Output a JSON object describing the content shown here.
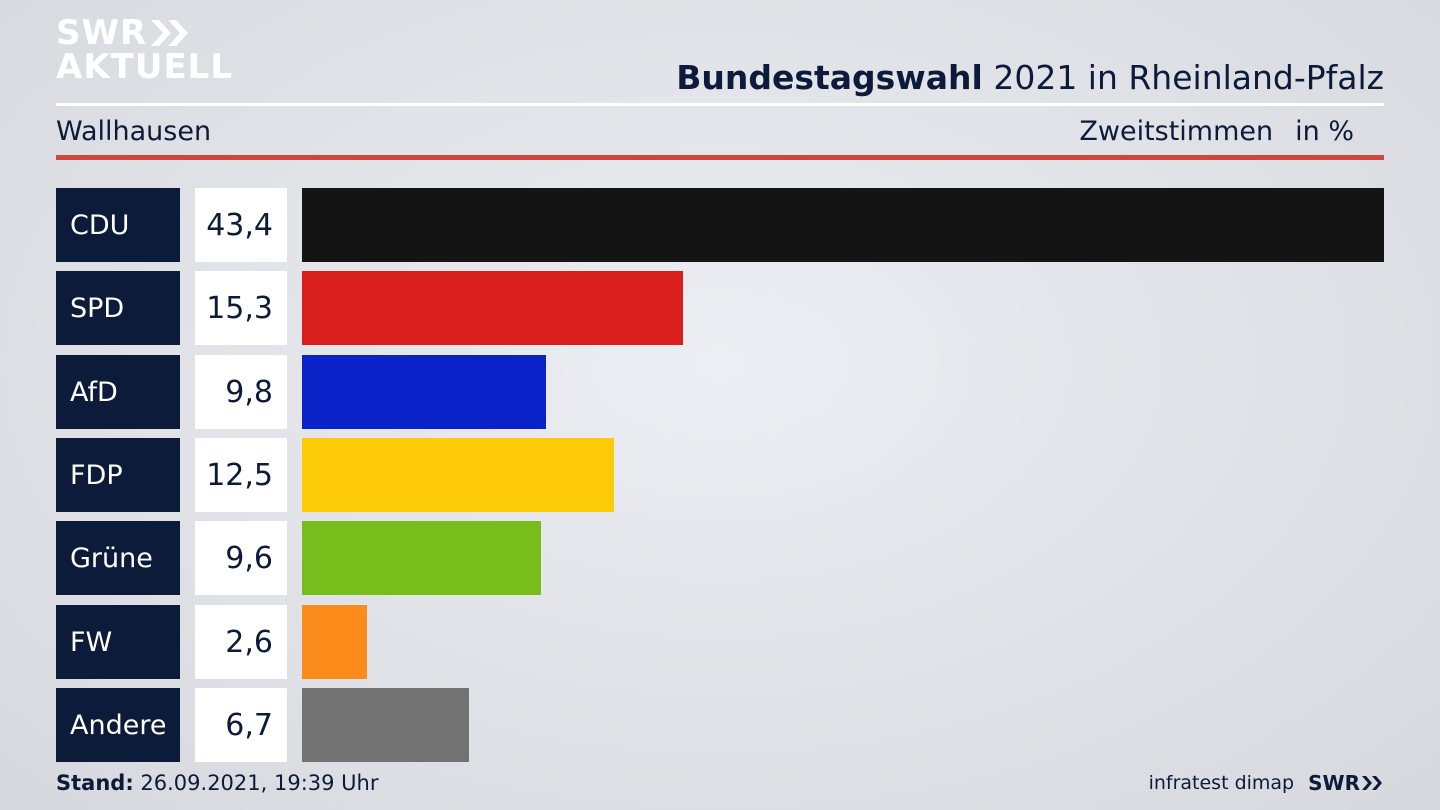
{
  "logo": {
    "line1": "SWR",
    "line2": "AKTUELL"
  },
  "header": {
    "title_bold": "Bundestagswahl",
    "title_rest": " 2021 in Rheinland-Pfalz",
    "location": "Wallhausen",
    "measure": "Zweitstimmen",
    "unit": "in %"
  },
  "chart_data": {
    "type": "bar",
    "orientation": "horizontal",
    "categories": [
      "CDU",
      "SPD",
      "AfD",
      "FDP",
      "Grüne",
      "FW",
      "Andere"
    ],
    "values": [
      43.4,
      15.3,
      9.8,
      12.5,
      9.6,
      2.6,
      6.7
    ],
    "value_labels": [
      "43,4",
      "15,3",
      "9,8",
      "12,5",
      "9,6",
      "2,6",
      "6,7"
    ],
    "colors": [
      "#141414",
      "#d91e1e",
      "#0a22c8",
      "#fecb09",
      "#79bd1d",
      "#fb8c1b",
      "#727272"
    ],
    "xlim": [
      0,
      43.4
    ]
  },
  "footer": {
    "stand_label": "Stand:",
    "stand_value": " 26.09.2021, 19:39 Uhr",
    "source": "infratest dimap",
    "brand": "SWR"
  }
}
